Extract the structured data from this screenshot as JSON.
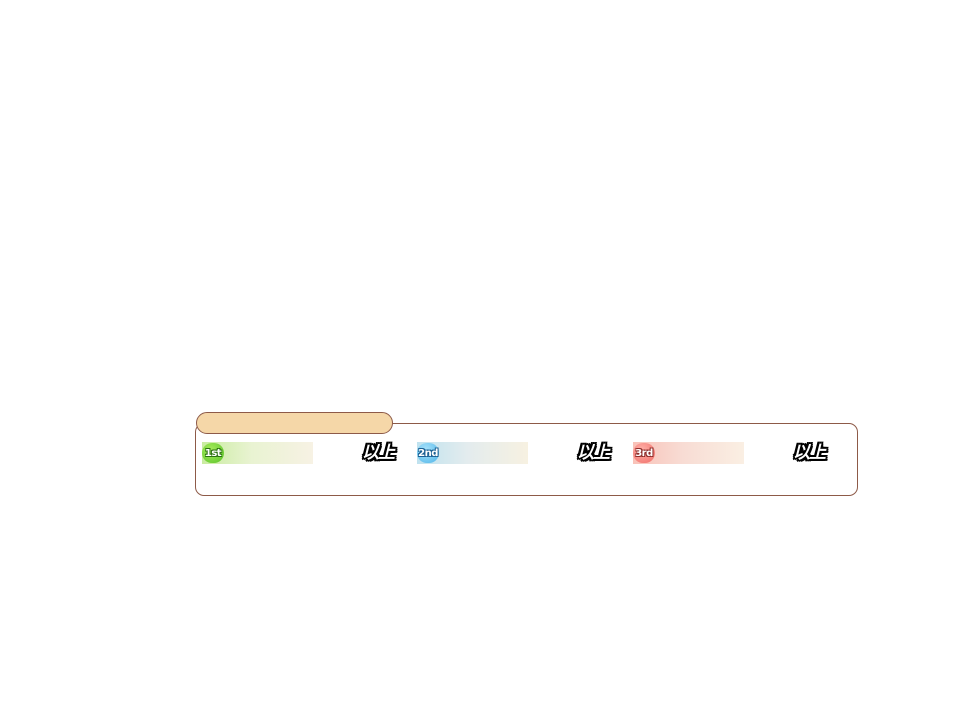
{
  "rank_panel": {
    "tab_label": "",
    "ranks": [
      {
        "badge": "1st",
        "value": "",
        "suffix": "以上",
        "accent": "#58c228"
      },
      {
        "badge": "2nd",
        "value": "",
        "suffix": "以上",
        "accent": "#4eb4e8"
      },
      {
        "badge": "3rd",
        "value": "",
        "suffix": "以上",
        "accent": "#f06c66"
      }
    ]
  }
}
